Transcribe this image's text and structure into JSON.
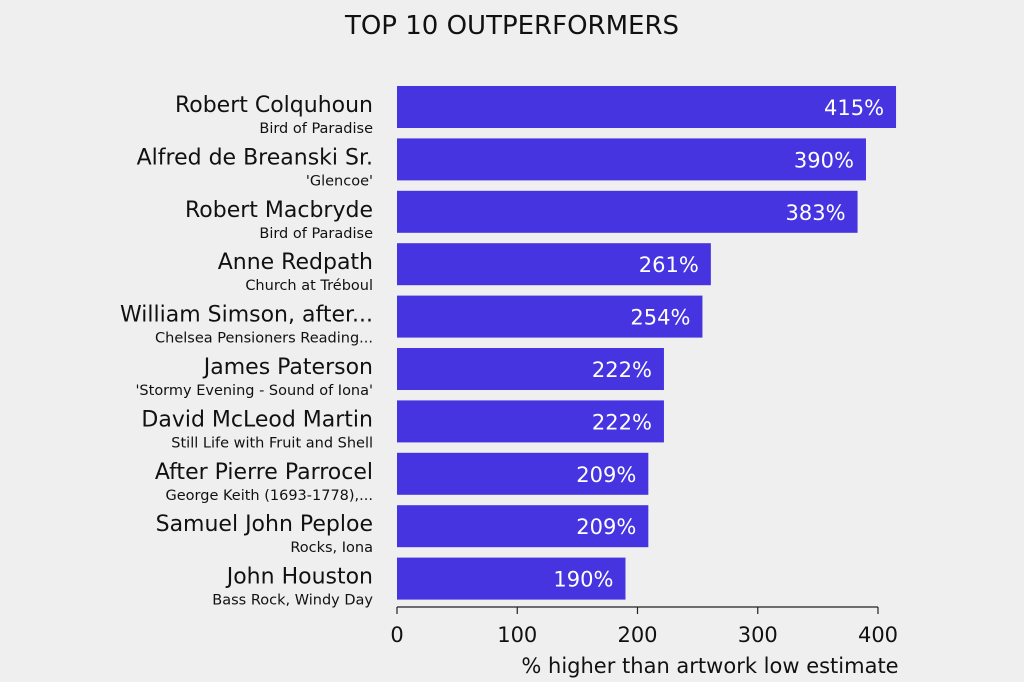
{
  "chart_data": {
    "type": "bar",
    "orientation": "horizontal",
    "title": "TOP 10 OUTPERFORMERS",
    "xlabel": "% higher than artwork low estimate",
    "ylabel": "",
    "xlim": [
      0,
      400
    ],
    "xticks": [
      "0",
      "100",
      "200",
      "300",
      "400"
    ],
    "grid": false,
    "bar_color": "#4634e0",
    "categories": [
      {
        "artist": "Robert Colquhoun",
        "work": "Bird of Paradise"
      },
      {
        "artist": "Alfred de Breanski Sr.",
        "work": "'Glencoe'"
      },
      {
        "artist": "Robert Macbryde",
        "work": "Bird of Paradise"
      },
      {
        "artist": "Anne Redpath",
        "work": "Church at Tréboul"
      },
      {
        "artist": "William Simson, after...",
        "work": "Chelsea Pensioners Reading..."
      },
      {
        "artist": "James Paterson",
        "work": "'Stormy Evening - Sound of Iona'"
      },
      {
        "artist": "David McLeod Martin",
        "work": "Still Life with Fruit and Shell"
      },
      {
        "artist": "After Pierre Parrocel",
        "work": "George Keith (1693-1778),..."
      },
      {
        "artist": "Samuel John Peploe",
        "work": "Rocks, Iona"
      },
      {
        "artist": "John Houston",
        "work": "Bass Rock, Windy Day"
      }
    ],
    "values": [
      415,
      390,
      383,
      261,
      254,
      222,
      222,
      209,
      209,
      190
    ],
    "value_labels": [
      "415%",
      "390%",
      "383%",
      "261%",
      "254%",
      "222%",
      "222%",
      "209%",
      "209%",
      "190%"
    ]
  }
}
